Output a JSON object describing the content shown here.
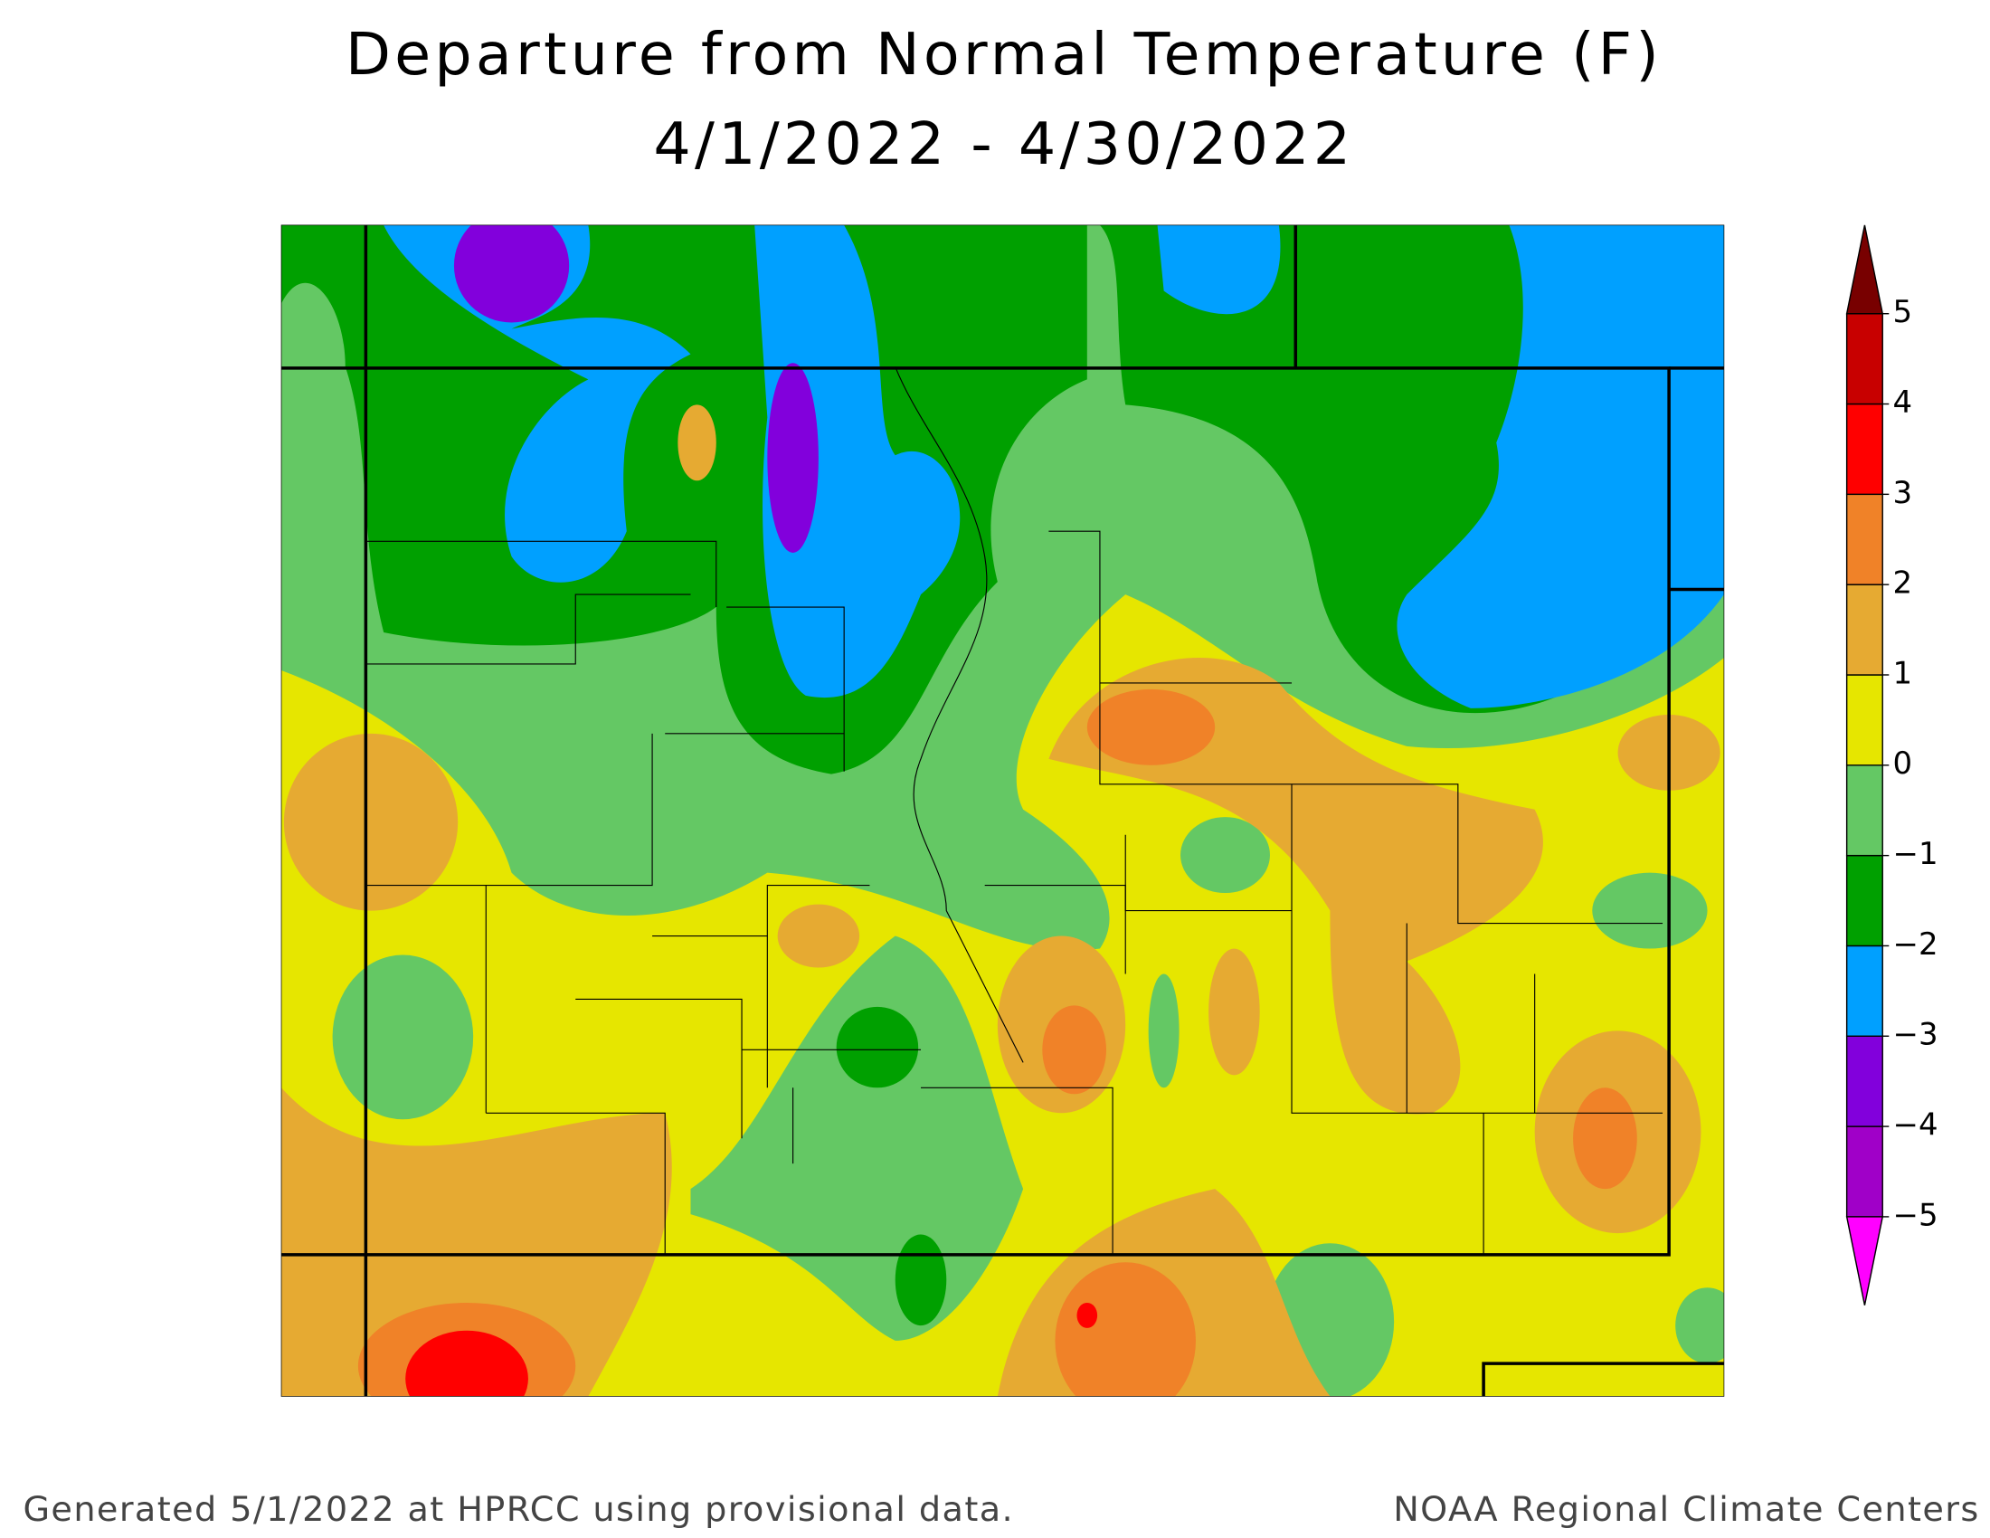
{
  "header": {
    "title": "Departure from Normal Temperature (F)",
    "subtitle": "4/1/2022 - 4/30/2022"
  },
  "legend": {
    "lim": [
      -5,
      5
    ],
    "ticks": [
      {
        "value": -5,
        "label": "−5"
      },
      {
        "value": -4,
        "label": "−4"
      },
      {
        "value": -3,
        "label": "−3"
      },
      {
        "value": -2,
        "label": "−2"
      },
      {
        "value": -1,
        "label": "−1"
      },
      0,
      1,
      2,
      3,
      4,
      5
    ],
    "colors": [
      "#a000c8",
      "#8200dc",
      "#00a0ff",
      "#00a000",
      "#64c864",
      "#e6e600",
      "#e6aa32",
      "#f08228",
      "#ff0000",
      "#c80000"
    ],
    "under_color": "#ff00ff",
    "over_color": "#780000"
  },
  "footer": {
    "left": "Generated 5/1/2022 at HPRCC using provisional data.",
    "right": "NOAA Regional Climate Centers"
  }
}
